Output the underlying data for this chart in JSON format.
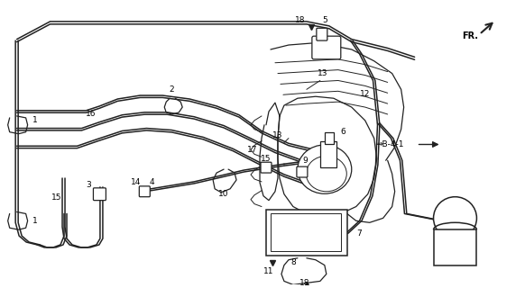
{
  "bg_color": "#ffffff",
  "line_color": "#222222",
  "label_color": "#000000",
  "figsize": [
    5.82,
    3.2
  ],
  "dpi": 100,
  "fr_label": "FR.",
  "b41_label": "B-4-1"
}
